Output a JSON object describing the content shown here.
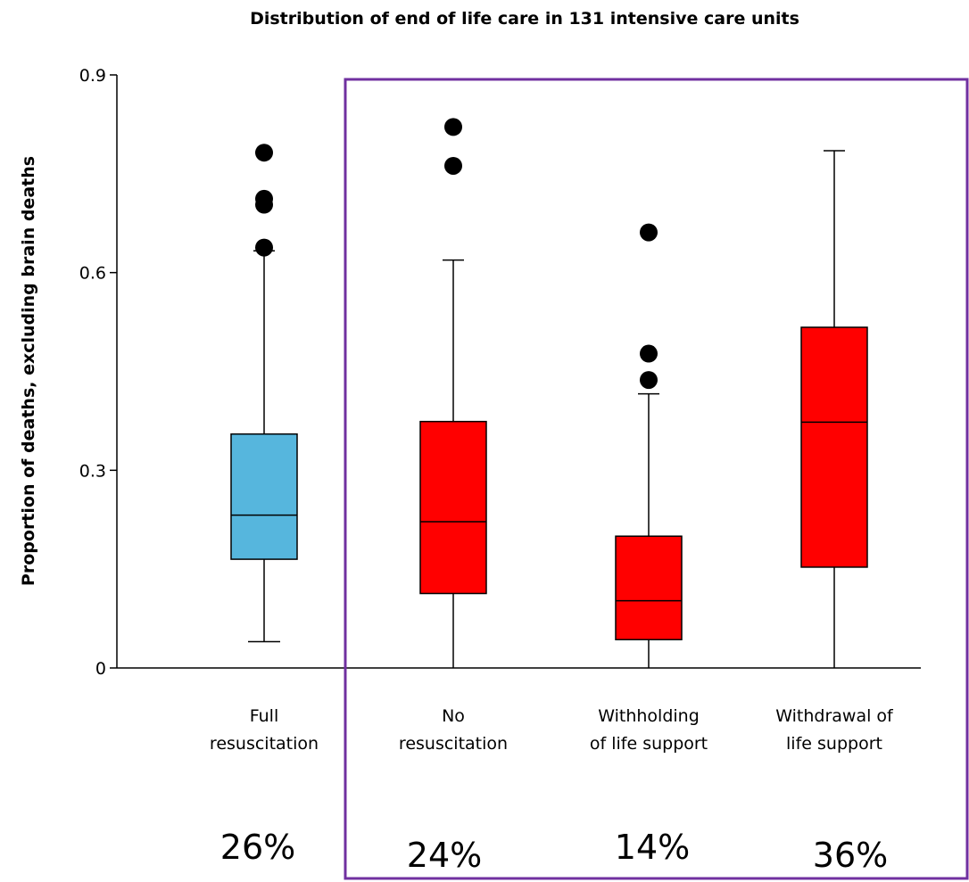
{
  "chart_data": {
    "type": "boxplot",
    "title": "Distribution of end of life care in 131 intensive care units",
    "ylabel": "Proportion of deaths, excluding brain deaths",
    "ylim": [
      0,
      0.9
    ],
    "yticks": [
      "0",
      "0.3",
      "0.6",
      "0.9"
    ],
    "colors": {
      "blue": "#56b6dd",
      "red": "#ff0000",
      "highlight": "#7030a0"
    },
    "categories": [
      {
        "label_lines": [
          "Full",
          "resuscitation"
        ],
        "color": "blue",
        "whisker_low": 0.04,
        "q1": 0.165,
        "median": 0.232,
        "q3": 0.355,
        "whisker_high": 0.633,
        "outliers": [
          0.782,
          0.712,
          0.703,
          0.638
        ],
        "percent": "26%"
      },
      {
        "label_lines": [
          "No",
          "resuscitation"
        ],
        "color": "red",
        "whisker_low": 0.0,
        "q1": 0.113,
        "median": 0.222,
        "q3": 0.374,
        "whisker_high": 0.619,
        "outliers": [
          0.821,
          0.762
        ],
        "percent": "24%"
      },
      {
        "label_lines": [
          "Withholding",
          "of life support"
        ],
        "color": "red",
        "whisker_low": 0.0,
        "q1": 0.043,
        "median": 0.102,
        "q3": 0.2,
        "whisker_high": 0.416,
        "outliers": [
          0.661,
          0.477,
          0.437
        ],
        "percent": "14%"
      },
      {
        "label_lines": [
          "Withdrawal of",
          "life support"
        ],
        "color": "red",
        "whisker_low": 0.0,
        "q1": 0.153,
        "median": 0.373,
        "q3": 0.517,
        "whisker_high": 0.785,
        "outliers": [],
        "percent": "36%"
      }
    ]
  }
}
